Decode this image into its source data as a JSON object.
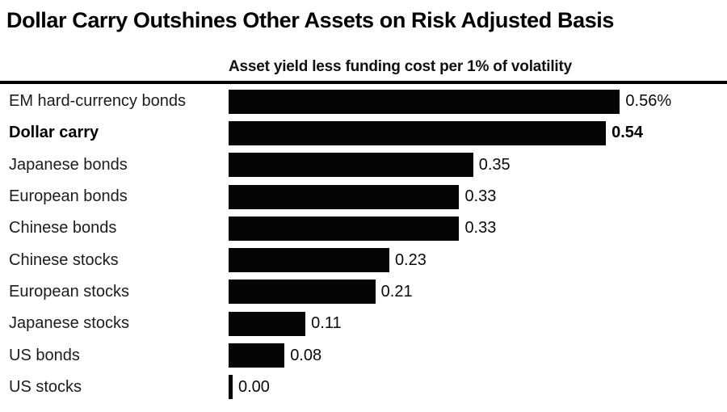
{
  "title": "Dollar Carry Outshines Other Assets on Risk Adjusted Basis",
  "subtitle": "Asset yield less funding cost per 1% of volatility",
  "colors": {
    "bar": "#050505",
    "rule": "#000000",
    "highlight_row_bg": "#ececec",
    "background": "#ffffff"
  },
  "chart_data": {
    "type": "bar",
    "orientation": "horizontal",
    "title": "Dollar Carry Outshines Other Assets on Risk Adjusted Basis",
    "subtitle": "Asset yield less funding cost per 1% of volatility",
    "categories": [
      "EM hard-currency bonds",
      "Dollar carry",
      "Japanese bonds",
      "European bonds",
      "Chinese bonds",
      "Chinese stocks",
      "European stocks",
      "Japanese stocks",
      "US bonds",
      "US stocks"
    ],
    "values": [
      0.56,
      0.54,
      0.35,
      0.33,
      0.33,
      0.23,
      0.21,
      0.11,
      0.08,
      0.0
    ],
    "value_labels": [
      "0.56%",
      "0.54",
      "0.35",
      "0.33",
      "0.33",
      "0.23",
      "0.21",
      "0.11",
      "0.08",
      "0.00"
    ],
    "highlighted_category": "Dollar carry",
    "xlim": [
      0,
      0.6
    ],
    "grid": false,
    "legend": false,
    "bar_color": "#050505"
  },
  "rows": [
    {
      "label": "EM hard-currency bonds",
      "value": 0.56,
      "value_label": "0.56%"
    },
    {
      "label": "Dollar carry",
      "value": 0.54,
      "value_label": "0.54"
    },
    {
      "label": "Japanese bonds",
      "value": 0.35,
      "value_label": "0.35"
    },
    {
      "label": "European bonds",
      "value": 0.33,
      "value_label": "0.33"
    },
    {
      "label": "Chinese bonds",
      "value": 0.33,
      "value_label": "0.33"
    },
    {
      "label": "Chinese stocks",
      "value": 0.23,
      "value_label": "0.23"
    },
    {
      "label": "European stocks",
      "value": 0.21,
      "value_label": "0.21"
    },
    {
      "label": "Japanese stocks",
      "value": 0.11,
      "value_label": "0.11"
    },
    {
      "label": "US bonds",
      "value": 0.08,
      "value_label": "0.08"
    },
    {
      "label": "US stocks",
      "value": 0.0,
      "value_label": "0.00"
    }
  ]
}
